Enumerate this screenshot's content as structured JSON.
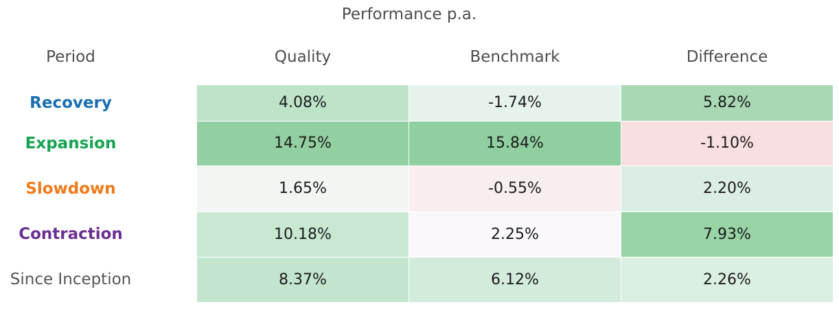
{
  "chart_data": {
    "type": "table",
    "title": "Performance p.a.",
    "columns": [
      "Period",
      "Quality",
      "Benchmark",
      "Difference"
    ],
    "rows": [
      {
        "period": "Recovery",
        "label_color": "#1a6fb0",
        "values": [
          "4.08%",
          "-1.74%",
          "5.82%"
        ],
        "cell_colors": [
          "#bde3c8",
          "#e6f3ec",
          "#a8d9b4"
        ]
      },
      {
        "period": "Expansion",
        "label_color": "#16a352",
        "values": [
          "14.75%",
          "15.84%",
          "-1.10%"
        ],
        "cell_colors": [
          "#92d0a1",
          "#90d0a0",
          "#f9dfe2"
        ]
      },
      {
        "period": "Slowdown",
        "label_color": "#ef7a1a",
        "values": [
          "1.65%",
          "-0.55%",
          "2.20%"
        ],
        "cell_colors": [
          "#f1f6f3",
          "#f8edef",
          "#dceee4"
        ]
      },
      {
        "period": "Contraction",
        "label_color": "#6a2f93",
        "values": [
          "10.18%",
          "2.25%",
          "7.93%"
        ],
        "cell_colors": [
          "#c8e8d2",
          "#faf8fc",
          "#98d4a6"
        ]
      },
      {
        "period": "Since Inception",
        "label_color": "#555555",
        "values": [
          "8.37%",
          "6.12%",
          "2.26%"
        ],
        "cell_colors": [
          "#c3e5cd",
          "#d2ebdb",
          "#dcefe3"
        ]
      }
    ]
  }
}
